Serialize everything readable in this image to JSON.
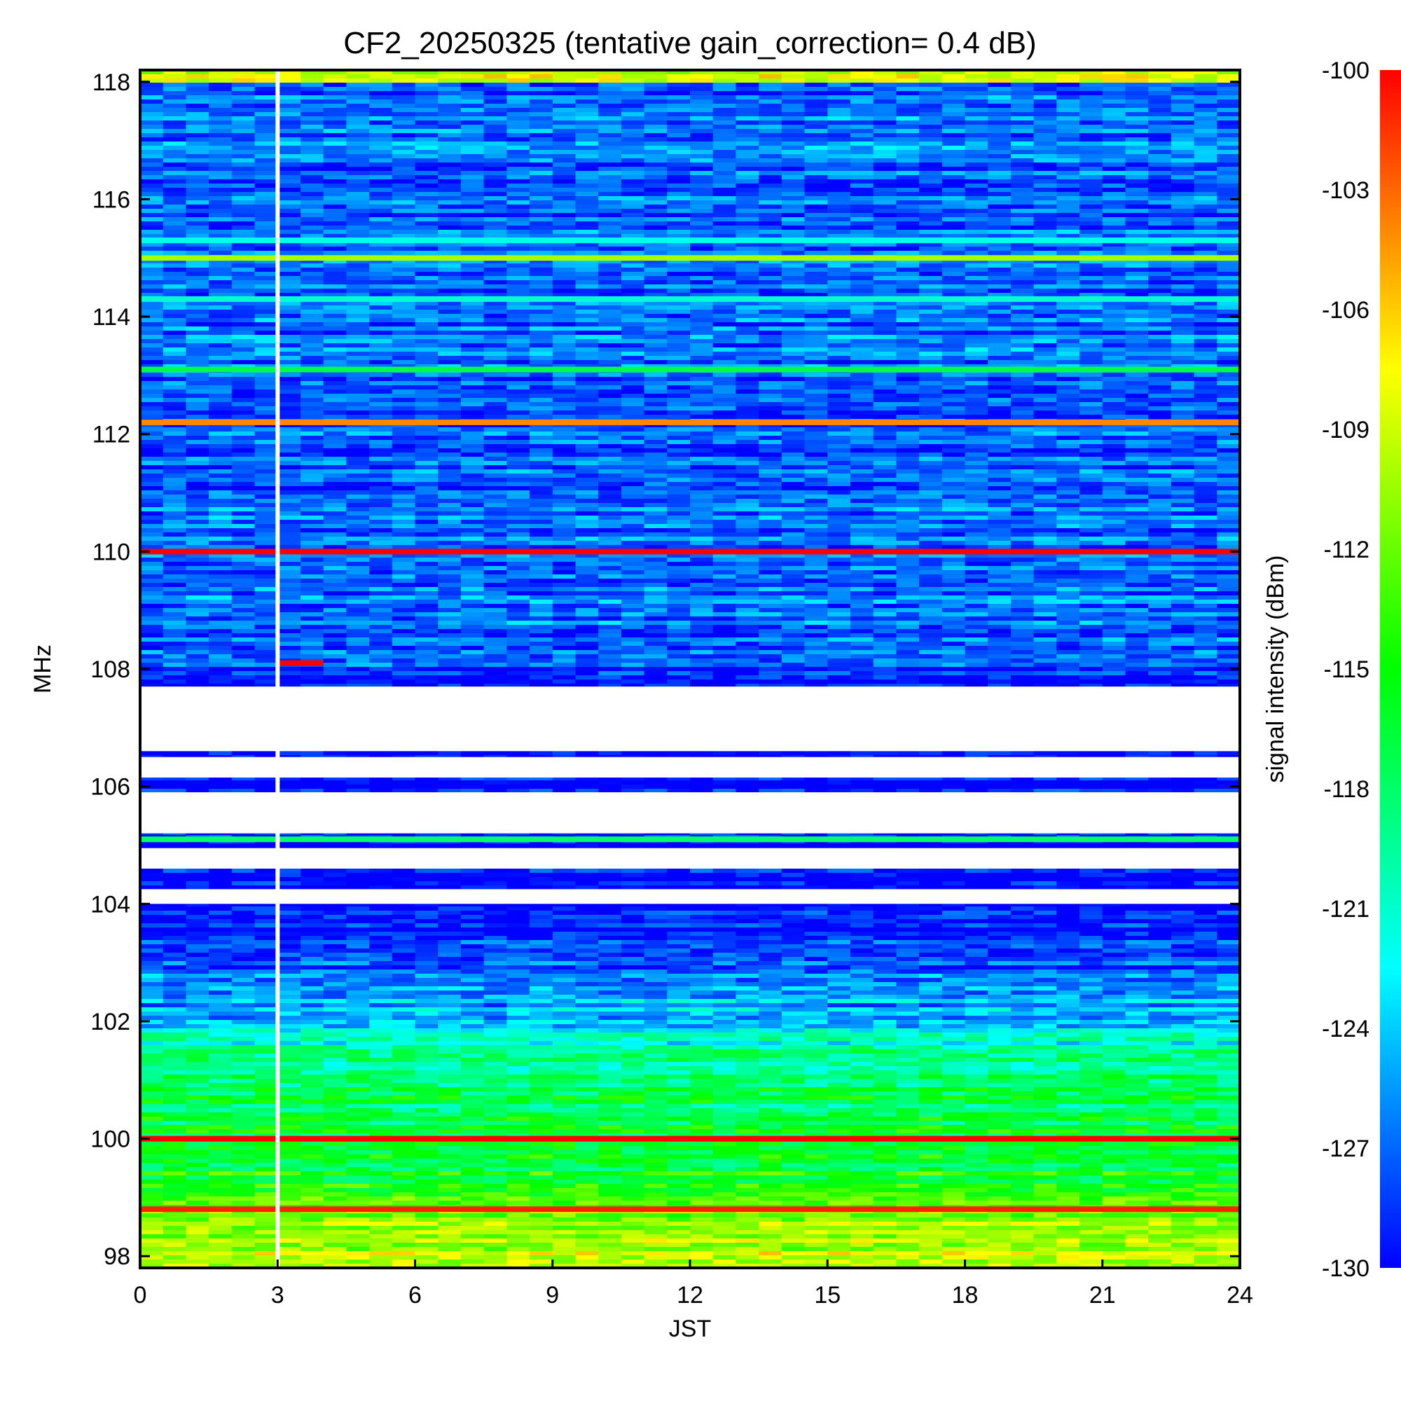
{
  "chart_data": {
    "type": "heatmap",
    "title": "CF2_20250325 (tentative gain_correction=  0.4 dB)",
    "xlabel": "JST",
    "ylabel": "MHz",
    "colorbar_label": "signal intensity (dBm)",
    "xlim": [
      0,
      24
    ],
    "ylim": [
      97.8,
      118.2
    ],
    "x_ticks": [
      "0",
      "3",
      "6",
      "9",
      "12",
      "15",
      "18",
      "21",
      "24"
    ],
    "y_ticks": [
      "98",
      "100",
      "102",
      "104",
      "106",
      "108",
      "110",
      "112",
      "114",
      "116",
      "118"
    ],
    "colorbar_range": [
      -130,
      -100
    ],
    "colorbar_ticks": [
      "-100",
      "-103",
      "-106",
      "-109",
      "-112",
      "-115",
      "-118",
      "-121",
      "-124",
      "-127",
      "-130"
    ],
    "colormap": [
      "#0000ff",
      "#0080ff",
      "#00ffff",
      "#00ff80",
      "#00ff00",
      "#80ff00",
      "#ffff00",
      "#ff8000",
      "#ff0000"
    ],
    "data_gap_time": 3,
    "strong_bands": [
      {
        "freq": 112.2,
        "intensity": -104
      },
      {
        "freq": 110.0,
        "intensity": -100
      },
      {
        "freq": 108.1,
        "intensity": -100,
        "time_range": [
          3,
          4
        ]
      },
      {
        "freq": 105.1,
        "intensity": -118
      },
      {
        "freq": 100.0,
        "intensity": -100
      },
      {
        "freq": 98.8,
        "intensity": -101
      },
      {
        "freq": 115.0,
        "intensity": -110
      },
      {
        "freq": 113.1,
        "intensity": -117
      },
      {
        "freq": 114.3,
        "intensity": -121
      },
      {
        "freq": 115.3,
        "intensity": -122
      }
    ],
    "background_profile": [
      {
        "freq": 118.0,
        "intensity": -127
      },
      {
        "freq": 108.2,
        "intensity": -127
      },
      {
        "freq": 107.8,
        "intensity": -130
      },
      {
        "freq": 103.6,
        "intensity": -130
      },
      {
        "freq": 102.8,
        "intensity": -127
      },
      {
        "freq": 102.0,
        "intensity": -124
      },
      {
        "freq": 101.3,
        "intensity": -119
      },
      {
        "freq": 100.2,
        "intensity": -117
      },
      {
        "freq": 99.2,
        "intensity": -115
      },
      {
        "freq": 98.5,
        "intensity": -111
      },
      {
        "freq": 97.8,
        "intensity": -109
      }
    ],
    "white_gap_bands": [
      {
        "from": 107.7,
        "to": 106.6
      },
      {
        "from": 106.5,
        "to": 106.15
      },
      {
        "from": 105.9,
        "to": 105.2
      },
      {
        "from": 104.95,
        "to": 104.6
      },
      {
        "from": 104.25,
        "to": 104.0
      }
    ]
  }
}
